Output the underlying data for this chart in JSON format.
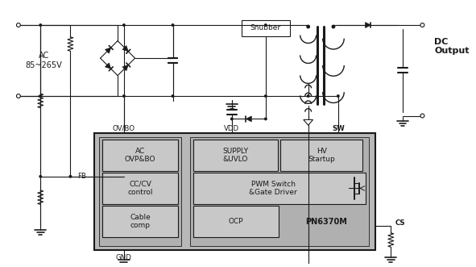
{
  "bg_color": "#ffffff",
  "lc": "#1a1a1a",
  "ic_fill": "#b8b8b8",
  "box_fill": "#c8c8c8",
  "labels": {
    "ac": "AC\n85~265V",
    "dc_output": "DC\nOutput",
    "snubber": "Snubber",
    "ov_bo": "OV/BO",
    "vdd": "VDD",
    "sw": "SW",
    "fb": "FB",
    "gnd": "GND",
    "cs": "CS",
    "pn": "PN6370M",
    "ac_ovp": "AC\nOVP&BO",
    "cc_cv": "CC/CV\ncontrol",
    "cable_comp": "Cable\ncomp",
    "supply_uvlo": "SUPPLY\n&UVLO",
    "hv_startup": "HV\nStartup",
    "pwm_switch": "PWM Switch\n&Gate Driver",
    "ocp": "OCP"
  },
  "figsize": [
    5.91,
    3.31
  ],
  "dpi": 100
}
